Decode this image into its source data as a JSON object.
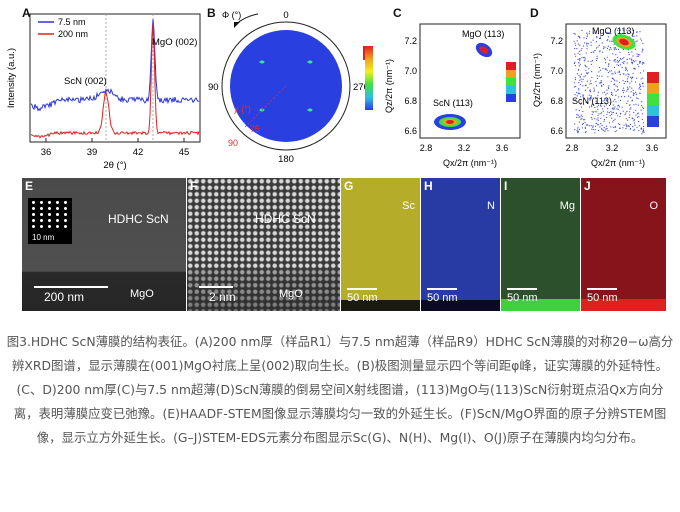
{
  "panelA": {
    "letter": "A",
    "ylabel": "Intensity (a.u.)",
    "xlabel": "2θ (°)",
    "xticks": [
      "36",
      "39",
      "42",
      "45"
    ],
    "legend": [
      "7.5 nm",
      "200 nm"
    ],
    "annot_mgo": "MgO (002)",
    "annot_scn": "ScN (002)",
    "colors": {
      "blue": "#2b35d8",
      "red": "#e02020"
    }
  },
  "panelB": {
    "letter": "B",
    "phi_label": "Φ (°)",
    "angle_0": "0",
    "angle_90": "90",
    "angle_180": "180",
    "angle_270": "270",
    "chi_label": "χ (°)",
    "chi_75": "75",
    "chi_90": "90",
    "fill": "#2a3fe0"
  },
  "panelC": {
    "letter": "C",
    "ylabel": "Qz/2π (nm⁻¹)",
    "xlabel": "Qx/2π (nm⁻¹)",
    "yticks": [
      "7.2",
      "7.0",
      "6.8",
      "6.6"
    ],
    "xticks": [
      "2.8",
      "3.2",
      "3.6"
    ],
    "annot_mgo": "MgO (113)",
    "annot_scn": "ScN (113)"
  },
  "panelD": {
    "letter": "D",
    "ylabel": "Qz/2π (nm⁻¹)",
    "xlabel": "Qx/2π (nm⁻¹)",
    "yticks": [
      "7.2",
      "7.0",
      "6.8",
      "6.6"
    ],
    "xticks": [
      "2.8",
      "3.2",
      "3.6"
    ],
    "annot_mgo": "MgO (113)",
    "annot_scn": "ScN (113)"
  },
  "panelE": {
    "letter": "E",
    "label_top": "HDHC ScN",
    "label_bottom": "MgO",
    "scale": "200 nm",
    "inset_scale": "10 nm"
  },
  "panelF": {
    "letter": "F",
    "label_top": "HDHC ScN",
    "label_bottom": "MgO",
    "scale": "2 nm"
  },
  "panelG": {
    "letter": "G",
    "element": "Sc",
    "scale": "50 nm",
    "color": "#b8b02a"
  },
  "panelH": {
    "letter": "H",
    "element": "N",
    "scale": "50 nm",
    "color": "#2a3aa8"
  },
  "panelI": {
    "letter": "I",
    "element": "Mg",
    "scale": "50 nm",
    "color": "#2f5a2f"
  },
  "panelJ": {
    "letter": "J",
    "element": "O",
    "scale": "50 nm",
    "color": "#8a1418"
  },
  "caption": "图3.HDHC ScN薄膜的结构表征。(A)200 nm厚（样品R1）与7.5 nm超薄（样品R9）HDHC ScN薄膜的对称2θ−ω高分辨XRD图谱，显示薄膜在(001)MgO衬底上呈(002)取向生长。(B)极图测量显示四个等间距φ峰，证实薄膜的外延特性。(C、D)200 nm厚(C)与7.5 nm超薄(D)ScN薄膜的倒易空间X射线图谱，(113)MgO与(113)ScN衍射斑点沿Qx方向分离，表明薄膜应变已弛豫。(E)HAADF-STEM图像显示薄膜均匀一致的外延生长。(F)ScN/MgO界面的原子分辨STEM图像，显示立方外延生长。(G–J)STEM-EDS元素分布图显示Sc(G)、N(H)、Mg(I)、O(J)原子在薄膜内均匀分布。"
}
